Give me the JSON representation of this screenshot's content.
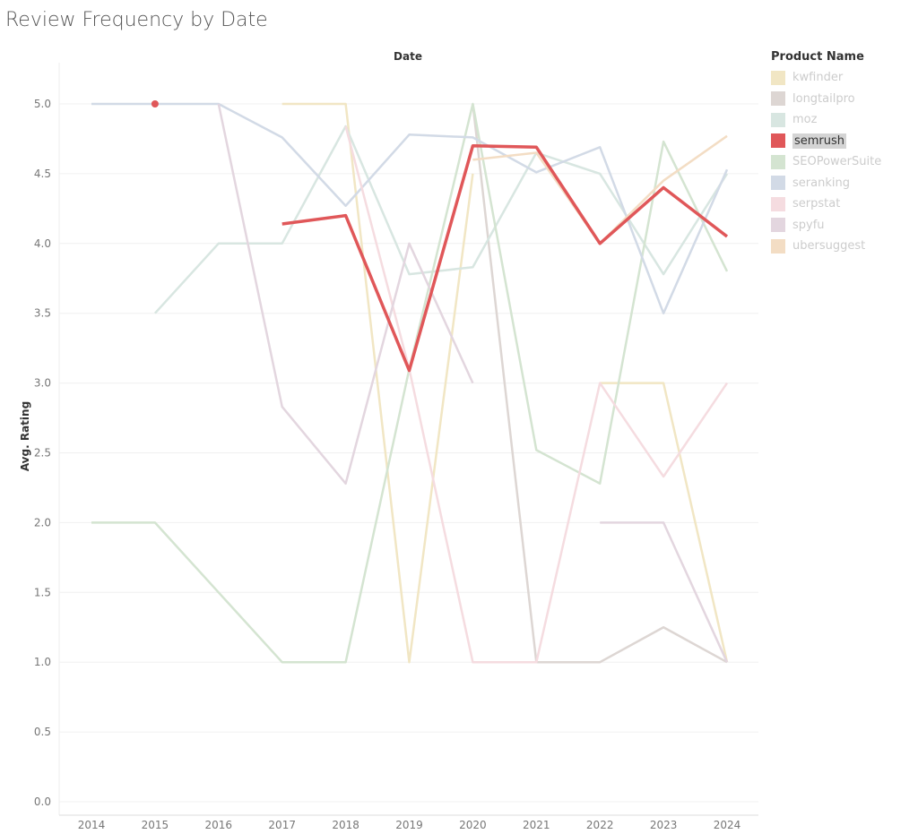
{
  "chart_data": {
    "type": "line",
    "title": "Review Frequency by Date",
    "xlabel": "Date",
    "ylabel": "Avg. Rating",
    "x": [
      2014,
      2015,
      2016,
      2017,
      2018,
      2019,
      2020,
      2021,
      2022,
      2023,
      2024
    ],
    "ylim": [
      0,
      5
    ],
    "yticks": [
      "0.0",
      "0.5",
      "1.0",
      "1.5",
      "2.0",
      "2.5",
      "3.0",
      "3.5",
      "4.0",
      "4.5",
      "5.0"
    ],
    "grid": true,
    "legend_title": "Product Name",
    "legend_position": "right",
    "highlighted": "semrush",
    "series": [
      {
        "name": "kwfinder",
        "color": "#f1e6c4",
        "values": [
          null,
          null,
          null,
          5,
          5,
          1,
          4.5,
          null,
          3,
          3,
          1
        ]
      },
      {
        "name": "longtailpro",
        "color": "#ddd6d3",
        "values": [
          null,
          null,
          null,
          null,
          null,
          null,
          5,
          1,
          1,
          1.25,
          1
        ]
      },
      {
        "name": "moz",
        "color": "#d8e6e1",
        "values": [
          null,
          3.5,
          4,
          4,
          4.84,
          3.78,
          3.83,
          4.65,
          4.5,
          3.78,
          4.5
        ]
      },
      {
        "name": "semrush",
        "color": "#e05759",
        "values": [
          null,
          5,
          null,
          4.14,
          4.2,
          3.09,
          4.7,
          4.69,
          4,
          4.4,
          4.05
        ]
      },
      {
        "name": "SEOPowerSuite",
        "color": "#d4e4d1",
        "values": [
          2,
          2,
          1.5,
          1,
          1,
          3.1,
          5,
          2.52,
          2.28,
          4.73,
          3.8
        ]
      },
      {
        "name": "seranking",
        "color": "#d2dae6",
        "values": [
          5,
          5,
          5,
          4.76,
          4.27,
          4.78,
          4.76,
          4.51,
          4.69,
          3.5,
          4.53
        ]
      },
      {
        "name": "serpstat",
        "color": "#f5dce0",
        "values": [
          null,
          null,
          null,
          null,
          4.84,
          3.1,
          1,
          1,
          3,
          2.33,
          3
        ]
      },
      {
        "name": "spyfu",
        "color": "#e3d6df",
        "values": [
          null,
          null,
          5,
          2.83,
          2.28,
          4,
          3,
          null,
          2,
          2,
          1
        ]
      },
      {
        "name": "ubersuggest",
        "color": "#f3ddc4",
        "values": [
          null,
          null,
          null,
          null,
          null,
          null,
          4.6,
          4.65,
          4,
          4.45,
          4.77
        ]
      }
    ]
  }
}
